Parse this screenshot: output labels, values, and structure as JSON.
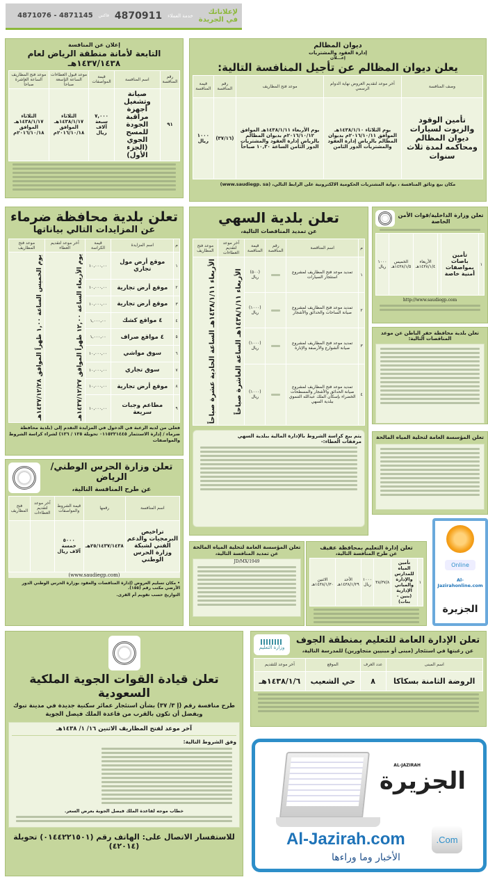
{
  "header": {
    "brand_line1": "لإعلاناتك",
    "brand_line2": "في الجريدة",
    "service_label": "خدمة العملاء",
    "service_number": "4870911",
    "fax_label": "فاكس",
    "fax_numbers": "4871145 - 4871076",
    "accent": "#8cb83a"
  },
  "diwan": {
    "org": "ديوان المظالم",
    "dept": "إدارة العقود والمشتريات",
    "notice": "إعـــلان",
    "title": "يعلن ديوان المظالم عن تأجيل المنافسة التالية:",
    "headers": [
      "وصف المنافسة",
      "آخر موعد لتقديم العروض نهاية الدوام الرسمي",
      "موعد فتح المظاريف",
      "رقم المنافسة",
      "قيمة المنافسة"
    ],
    "row": [
      "تأمين الوقود والزيوت لسيارات ديوان المظالم ومحاكمه لمدة ثلاث سنوات",
      "يوم الثلاثاء ١٤٣٨/١/١٠هـ الموافق ٢٠١٦/١٠/١١م بديوان المظالم بالرياض إدارة العقود والمشتريات الدور الثامن",
      "يوم الأربعاء ١٤٣٨/١/١١هـ الموافق ٢٠١٦/١٠/١٢م بديوان المظالم بالرياض إدارة العقود والمشتريات الدور الثامن الساعة ١٠,٣٠ صباحاً",
      "(٣٧/١٦)",
      "١٠٠٠ ريال"
    ],
    "footer": "مكان بيع وثائق المنافسة ، بوابة المشتريات الحكومية الالكترونية على الرابط التالي، (www.saudiegp. sa)"
  },
  "amanah": {
    "notice": "إعلان عن المنافسة",
    "title": "التابعة لأمانة منطقة الرياض لعام ١٤٣٧/١٤٣٨هـ",
    "headers": [
      "رقم المنافسة",
      "اسم المنافسة",
      "قيمة المواصفات",
      "موعد قبول العطاءات الساعة التاسعة صباحاً",
      "موعد فتح المظاريف الساعة العاشرة صباحاً"
    ],
    "row": [
      "٩١",
      "صيانة وتشغيل أجهزة مراقبة الجودة للمسح الجوي (الجزء الأول)",
      "٧,٠٠٠ سبعة آلاف ريال",
      "الثلاثاء ١٤٣٨/١/١٧هـ الموافق ٢٠١٦/١٠/١٨م",
      "الثلاثاء ١٤٣٨/١/١٧هـ الموافق ٢٠١٦/١٠/١٨م"
    ]
  },
  "dharma": {
    "title": "تعلن بلدية محافظة ضرماء",
    "subtitle": "عن المزايدات التالي بياناتها",
    "headers": [
      "م",
      "اسم المزايدة",
      "قيمة الكراسة",
      "آخر موعد لتقديم العطاء",
      "موعد فتح المظاريف"
    ],
    "rows": [
      [
        "١",
        "موقع أرض مول تجاري",
        "١٠,٠٠٠,٠٠"
      ],
      [
        "٢",
        "موقع أرض تجارية",
        "١٠,٠٠٠,٠٠"
      ],
      [
        "٣",
        "موقع أرض تجارية",
        "١٠,٠٠٠,٠٠"
      ],
      [
        "٤",
        "٤ مواقع كشك",
        "١,٠٠٠,٠٠"
      ],
      [
        "٥",
        "٤ مواقع صراف",
        "١,٠٠٠,٠٠"
      ],
      [
        "٦",
        "سوق مواشي",
        "١٠,٠٠٠,٠٠"
      ],
      [
        "٧",
        "سوق تجاري",
        "١٠,٠٠٠,٠٠"
      ],
      [
        "٨",
        "موقع أرض تجارية",
        "١٠,٠٠٠,٠٠"
      ],
      [
        "٩",
        "مطاعم وجبات سريعة",
        "١٠,٠٠٠,٠٠"
      ]
    ],
    "deadline": "يوم الأربعاء الساعة ١٢,٠٠ ظهراً الموافق ١٤٣٧/١٢/٢٧هـ",
    "opening": "يوم الخميس الساعة ١,٠٠ ظهراً الموافق ١٤٣٧/١٢/٢٨هـ",
    "footer": "فعلى من لديه الرغبة في الدخول في المزايدة التقدم إلى (بلدية محافظة ضرماء / إدارة الاستثمار ٠١١٥٢٢١٤٤٥ تحويلة ١٢٥ / ١٢٦) لشراء كراسة الشروط والمواصفات"
  },
  "sahi": {
    "title": "تعلن بلدية السهي",
    "subtitle": "عن تمديد المناقصات التالية،",
    "headers": [
      "م",
      "اسم المناقصة",
      "رقم المناقصة",
      "قيمة المناقصة",
      "آخر موعد لتقديم العطاءات",
      "موعد فتح المظاريف"
    ],
    "rows": [
      [
        "١",
        "تمديد موعد فتح المظاريف لمشروع استئجار السيارات",
        "(٥٠٠) ريال"
      ],
      [
        "٢",
        "تمديد موعد فتح المظاريف لمشروع صيانة الساحات والحدائق والأشجار",
        "(١٠٠٠) ريال"
      ],
      [
        "٣",
        "تمديد موعد فتح المظاريف لمشروع صيانة الشوارع والأرصفة والإنارة",
        "(١٠٠٠) ريال"
      ],
      [
        "٤",
        "تمديد موعد فتح المظاريف لمشروع صيانة الحدائق والأشجار والمسطحات الخضراء بإسكان الملك عبدالله التنموي ببلدية السهي",
        "(١٠٠٠) ريال"
      ]
    ],
    "deadline": "الأربعاء ١٤٣٨/١/١١هـ الساعة العاشرة صباحاً",
    "opening": "الأربعاء ١٤٣٨/١/١١هـ الساعة الحادية عشرة صباحاً",
    "terms_title": "يتم بيع كراسة الشروط بالإدارة المالية ببلدية السهي",
    "attachments_title": "مرفقات العطاء:-"
  },
  "interior": {
    "title": "تعلن وزارة الداخلية/قوات الأمن الخاصة",
    "row": [
      "١",
      "تأمين باصات بمواصفات أمنية خاصة",
      "",
      "الأربعاء ١٤٣٨/١/٤هـ",
      "الخميس ١٤٣٨/١/٥هـ",
      "١٠٠٠ ريال"
    ],
    "url": "http://www.saudiegp.com"
  },
  "hafr": {
    "title": "تعلن بلدية محافظة حفر الباطن عن موعد المناقصات التالية:"
  },
  "water1": {
    "title": "تعلن المؤسسة العامة لتحلية المياه المالحة"
  },
  "haras": {
    "title": "تعلن وزارة الحرس الوطني/ الرياض",
    "subtitle": "عن طرح المنافسة التالية،",
    "headers": [
      "اسم المنافسة",
      "رقمها",
      "قيمة الشروط والمواصفات",
      "آخر موعد لتقديم العطاءات",
      "فتح المظاريف"
    ],
    "row": [
      "تراخيص البرمجيات والدعم الفني لشبكة وزارة الحرس الوطني",
      "٢٥/١٤٣٧/١٤٣٨هـ",
      "٥٠٠٠ خمسة آلاف ريال",
      "",
      ""
    ],
    "url": "(www.saudiegp.com)",
    "note1": "• مكان تسليم العروض (إدارة المناقصات والعقود بوزارة الحرس الوطني الدور الأرضي مكتب رقم (١٥٥).",
    "note2": "التواريخ حسب تقويم أم القرى."
  },
  "water2": {
    "title": "تعلن المؤسسة العامة لتحلية المياه المالحة",
    "subtitle": "عن تمديد المنافسة التالية،",
    "number": "JD/MX/1949"
  },
  "afif": {
    "title": "تعلن إدارة التعليم بمحافظة عفيف",
    "subtitle": "عن طرح المنافسة التالية،",
    "row": [
      "١",
      "تأمين المياه للمدارس والإدارة والمباني الإدارية (بنين - بنات)",
      "٣٨/٣٧/٨",
      "١٠٠٠ ريال",
      "الأحد ١٤٣٨/١/٢٩هـ",
      "الاثنين ١٤٣٨/١/٣٠هـ"
    ]
  },
  "online_ad": {
    "brand": "الجزيرة",
    "badge": "Online",
    "url": "Al-Jazirahonline.com"
  },
  "airforce": {
    "title": "تعلن قيادة القوات الجوية الملكية السعودية",
    "sub1": "طرح منافسة رقم (إ ٣/ ٣٧) بشأن استئجار عمائر سكنية جديدة في مدينة تبوك",
    "sub2": "ويفضل أن تكون بالقرب من قاعدة الملك فيصل الجوية",
    "deadline": "آخر موعد لفتح المظاريف الاثنين ١٦/ ١/ ١٤٣٨هـ",
    "conditions_title": "وفق الشروط التالية:",
    "letter": "خطاب موجه لقاعدة الملك فيصل الجوية بعرض السعر.",
    "contact": "للاستفسار الاتصال على: الهاتف رقم (٠١٤٤٢٢١٥٠١) تحويلة (٤٢٠١٤)"
  },
  "jouf": {
    "title": "تعلن الإدارة العامة للتعليم بمنطقة الجوف",
    "subtitle": "عن رغبتها في استئجار (مبنى أو مبنيين متجاورين) للمدرسة التالية،",
    "logo_text": "وزارة التعليم",
    "headers": [
      "اسم المبنى",
      "عدد الغرف",
      "الموقع",
      "آخر موعد للتقديم"
    ],
    "row": [
      "الروضة الثامنة بسكاكا",
      "٨",
      "حي الشعيب",
      "١٤٣٨/١/٦هـ"
    ]
  },
  "jazirah_ad": {
    "brand": "الجزيرة",
    "brand_latin": "AL-JAZIRAH",
    "url": "Al-Jazirah.com",
    "badge": ".Com",
    "slogan": "الأخبار وما وراءها",
    "accent": "#1e73b8"
  }
}
